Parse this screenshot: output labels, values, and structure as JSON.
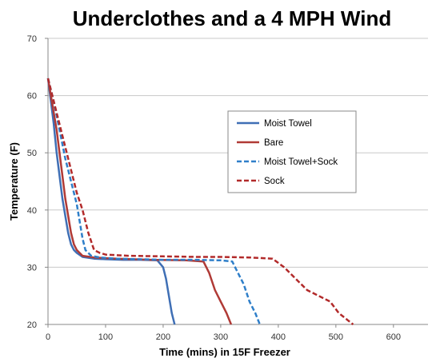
{
  "chart_data": {
    "type": "line",
    "title": "Underclothes and a 4 MPH Wind",
    "xlabel": "Time (mins) in 15F Freezer",
    "ylabel": "Temperature (F)",
    "xlim": [
      0,
      660
    ],
    "ylim": [
      20,
      70
    ],
    "x_ticks": [
      "0",
      "100",
      "200",
      "300",
      "400",
      "500",
      "600"
    ],
    "y_ticks": [
      "20",
      "30",
      "40",
      "50",
      "60",
      "70"
    ],
    "grid": "horizontal",
    "legend_position": "right",
    "series": [
      {
        "name": "Moist Towel",
        "color": "#3f6fb5",
        "dash": "solid",
        "points": [
          [
            0,
            63
          ],
          [
            5,
            59
          ],
          [
            10,
            55
          ],
          [
            15,
            50
          ],
          [
            20,
            46
          ],
          [
            25,
            42
          ],
          [
            30,
            39
          ],
          [
            35,
            36
          ],
          [
            40,
            34
          ],
          [
            45,
            33
          ],
          [
            50,
            32.5
          ],
          [
            60,
            31.8
          ],
          [
            80,
            31.5
          ],
          [
            100,
            31.4
          ],
          [
            130,
            31.3
          ],
          [
            160,
            31.3
          ],
          [
            190,
            31.2
          ],
          [
            200,
            30
          ],
          [
            205,
            28
          ],
          [
            210,
            25
          ],
          [
            215,
            22
          ],
          [
            220,
            20
          ]
        ]
      },
      {
        "name": "Bare",
        "color": "#b03a36",
        "dash": "solid",
        "points": [
          [
            0,
            63
          ],
          [
            5,
            60
          ],
          [
            10,
            57
          ],
          [
            15,
            54
          ],
          [
            20,
            50
          ],
          [
            25,
            46
          ],
          [
            30,
            42
          ],
          [
            35,
            39
          ],
          [
            40,
            36
          ],
          [
            45,
            34
          ],
          [
            50,
            33
          ],
          [
            60,
            32
          ],
          [
            80,
            31.7
          ],
          [
            120,
            31.5
          ],
          [
            180,
            31.3
          ],
          [
            240,
            31.2
          ],
          [
            270,
            31
          ],
          [
            280,
            29
          ],
          [
            290,
            26
          ],
          [
            300,
            24
          ],
          [
            310,
            22
          ],
          [
            318,
            20
          ]
        ]
      },
      {
        "name": "Moist Towel+Sock",
        "color": "#2f7fc9",
        "dash": "dashed",
        "points": [
          [
            0,
            63
          ],
          [
            10,
            59
          ],
          [
            20,
            54
          ],
          [
            30,
            49
          ],
          [
            40,
            45
          ],
          [
            50,
            41
          ],
          [
            55,
            38
          ],
          [
            60,
            35
          ],
          [
            65,
            33
          ],
          [
            75,
            32
          ],
          [
            90,
            31.7
          ],
          [
            120,
            31.5
          ],
          [
            160,
            31.4
          ],
          [
            200,
            31.3
          ],
          [
            250,
            31.3
          ],
          [
            300,
            31.2
          ],
          [
            320,
            31
          ],
          [
            330,
            29
          ],
          [
            340,
            27
          ],
          [
            350,
            24
          ],
          [
            360,
            22
          ],
          [
            368,
            20
          ]
        ]
      },
      {
        "name": "Sock",
        "color": "#b22a2a",
        "dash": "dashed",
        "points": [
          [
            0,
            63
          ],
          [
            10,
            59
          ],
          [
            20,
            55
          ],
          [
            30,
            51
          ],
          [
            40,
            47
          ],
          [
            50,
            43
          ],
          [
            60,
            40
          ],
          [
            70,
            36
          ],
          [
            80,
            33
          ],
          [
            90,
            32.5
          ],
          [
            100,
            32.2
          ],
          [
            140,
            32.0
          ],
          [
            200,
            31.9
          ],
          [
            260,
            31.8
          ],
          [
            300,
            31.8
          ],
          [
            350,
            31.7
          ],
          [
            390,
            31.5
          ],
          [
            410,
            30
          ],
          [
            430,
            28
          ],
          [
            450,
            26
          ],
          [
            470,
            25
          ],
          [
            490,
            24
          ],
          [
            505,
            22
          ],
          [
            520,
            20.8
          ],
          [
            530,
            20
          ]
        ]
      }
    ]
  }
}
